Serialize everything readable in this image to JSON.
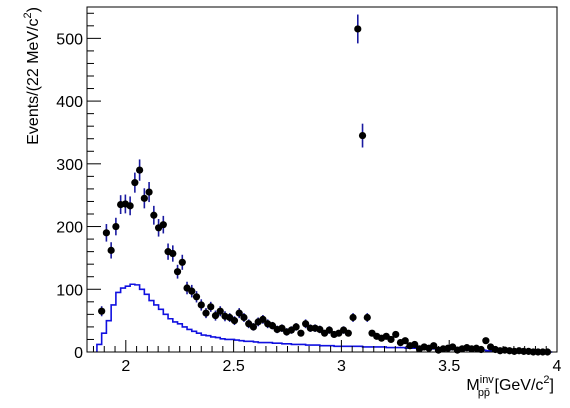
{
  "chart_data": {
    "type": "scatter",
    "xlabel": {
      "main": "M",
      "sup": "inv",
      "sub": "pp̄",
      "unit": " [GeV/c",
      "unit_sup": "2",
      "unit_end": "]"
    },
    "ylabel": {
      "main": "Events/(22 MeV/c",
      "sup": "2",
      "end": ")"
    },
    "xlim": [
      1.82,
      4.0
    ],
    "ylim": [
      0,
      550
    ],
    "xticks": [
      2,
      2.5,
      3,
      3.5,
      4
    ],
    "xtick_labels": [
      "2",
      "2.5",
      "3",
      "3.5",
      "4"
    ],
    "yticks": [
      0,
      100,
      200,
      300,
      400,
      500
    ],
    "ytick_labels": [
      "0",
      "100",
      "200",
      "300",
      "400",
      "500"
    ],
    "grid": false,
    "legend": "none",
    "colors": {
      "points": "#000000",
      "errors": "#1a1aa0",
      "histogram": "#1010e0"
    },
    "series": [
      {
        "kind": "points",
        "x": [
          1.888,
          1.91,
          1.932,
          1.954,
          1.976,
          1.998,
          2.02,
          2.042,
          2.064,
          2.086,
          2.108,
          2.13,
          2.152,
          2.174,
          2.196,
          2.218,
          2.24,
          2.262,
          2.284,
          2.306,
          2.328,
          2.35,
          2.372,
          2.394,
          2.416,
          2.438,
          2.46,
          2.482,
          2.504,
          2.526,
          2.548,
          2.57,
          2.592,
          2.614,
          2.636,
          2.658,
          2.68,
          2.702,
          2.724,
          2.746,
          2.768,
          2.79,
          2.812,
          2.834,
          2.856,
          2.878,
          2.9,
          2.922,
          2.944,
          2.966,
          2.988,
          3.01,
          3.032,
          3.054,
          3.076,
          3.098,
          3.12,
          3.142,
          3.164,
          3.186,
          3.208,
          3.23,
          3.252,
          3.274,
          3.296,
          3.318,
          3.34,
          3.362,
          3.384,
          3.406,
          3.428,
          3.45,
          3.472,
          3.494,
          3.516,
          3.538,
          3.56,
          3.582,
          3.604,
          3.626,
          3.648,
          3.67,
          3.692,
          3.714,
          3.736,
          3.758,
          3.78,
          3.802,
          3.824,
          3.846,
          3.868,
          3.89,
          3.912,
          3.934,
          3.956
        ],
        "y": [
          65,
          190,
          162,
          200,
          235,
          236,
          233,
          270,
          290,
          245,
          255,
          218,
          198,
          203,
          160,
          157,
          128,
          143,
          102,
          97,
          88,
          75,
          62,
          72,
          58,
          65,
          57,
          55,
          50,
          62,
          55,
          45,
          40,
          48,
          52,
          45,
          42,
          36,
          38,
          32,
          35,
          40,
          30,
          45,
          38,
          38,
          36,
          30,
          35,
          28,
          30,
          35,
          30,
          55,
          515,
          345,
          55,
          30,
          25,
          22,
          25,
          20,
          28,
          15,
          18,
          10,
          12,
          5,
          8,
          6,
          10,
          3,
          5,
          6,
          8,
          3,
          5,
          7,
          5,
          6,
          4,
          18,
          8,
          4,
          2,
          3,
          2,
          1,
          2,
          1,
          1,
          0,
          0,
          0,
          0
        ],
        "yerr": [
          8,
          14,
          13,
          14,
          15,
          15,
          15,
          16,
          17,
          16,
          16,
          15,
          14,
          14,
          13,
          13,
          11,
          12,
          10,
          10,
          9,
          9,
          8,
          8,
          8,
          8,
          8,
          7,
          7,
          8,
          7,
          7,
          6,
          7,
          7,
          7,
          6,
          6,
          6,
          6,
          6,
          6,
          5,
          7,
          6,
          6,
          6,
          5,
          6,
          5,
          5,
          6,
          5,
          7,
          23,
          19,
          7,
          5,
          5,
          5,
          5,
          4,
          5,
          4,
          4,
          3,
          3,
          2,
          3,
          2,
          3,
          2,
          2,
          2,
          3,
          2,
          2,
          3,
          2,
          2,
          2,
          4,
          3,
          2,
          1,
          2,
          1,
          1,
          1,
          1,
          1,
          0,
          0,
          0,
          0
        ]
      },
      {
        "kind": "histogram",
        "bin_edges": [
          1.866,
          1.888,
          1.91,
          1.932,
          1.954,
          1.976,
          1.998,
          2.02,
          2.042,
          2.064,
          2.086,
          2.108,
          2.13,
          2.152,
          2.174,
          2.196,
          2.218,
          2.24,
          2.262,
          2.284,
          2.306,
          2.328,
          2.35,
          2.372,
          2.394,
          2.416,
          2.438,
          2.46,
          2.482,
          2.504,
          2.526,
          2.548,
          2.57,
          2.592,
          2.614,
          2.636,
          2.658,
          2.68,
          2.702,
          2.724,
          2.746,
          2.768,
          2.79,
          2.812,
          2.834,
          2.856,
          2.878,
          2.9,
          2.922,
          2.944,
          2.966,
          2.988,
          3.01,
          3.032,
          3.054,
          3.076,
          3.098,
          3.12,
          3.142,
          3.164,
          3.186,
          3.208,
          3.23,
          3.252,
          3.274,
          3.296,
          3.318,
          3.34,
          3.362,
          3.384,
          3.406,
          3.428,
          3.45,
          3.472,
          3.494,
          3.516,
          3.538,
          3.56,
          3.582,
          3.604,
          3.626,
          3.648,
          3.67,
          3.692,
          3.714,
          3.736,
          3.758,
          3.78,
          3.802,
          3.824,
          3.846,
          3.868,
          3.89,
          3.912,
          3.934,
          3.956,
          3.978
        ],
        "values": [
          12,
          30,
          50,
          75,
          95,
          102,
          105,
          108,
          107,
          100,
          92,
          82,
          75,
          68,
          60,
          53,
          48,
          45,
          40,
          36,
          33,
          30,
          27,
          26,
          24,
          23,
          21,
          20,
          20,
          19,
          18,
          17,
          17,
          16,
          15,
          15,
          15,
          14,
          14,
          13,
          13,
          12,
          12,
          12,
          11,
          11,
          11,
          10,
          10,
          10,
          9,
          9,
          9,
          9,
          9,
          9,
          8,
          8,
          8,
          8,
          8,
          7,
          7,
          7,
          7,
          6,
          6,
          6,
          6,
          5,
          5,
          5,
          5,
          4,
          4,
          4,
          4,
          3,
          3,
          3,
          3,
          3,
          2,
          2,
          2,
          2,
          2,
          1,
          1,
          1,
          1,
          1,
          0,
          0,
          0,
          0
        ]
      }
    ]
  }
}
